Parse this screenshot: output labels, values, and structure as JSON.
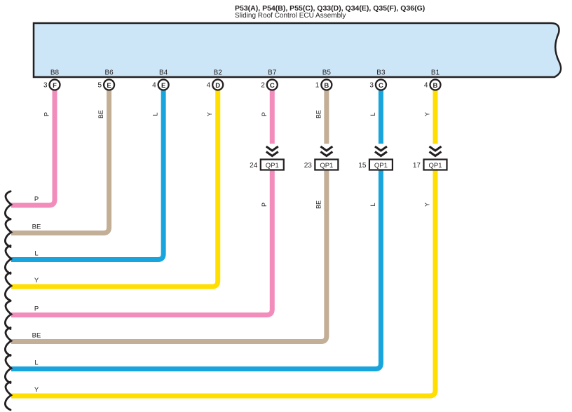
{
  "title": {
    "line1": "P53(A), P54(B), P55(C), Q33(D), Q34(E), Q35(F), Q36(G)",
    "line2": "Sliding Roof Control ECU Assembly"
  },
  "ecu_box": {
    "fill": "#CDE6F7",
    "stroke": "#231F20"
  },
  "wire_colors": {
    "P": "#F18CBB",
    "BE": "#C3AE96",
    "L": "#18A5DE",
    "Y": "#FFDE00"
  },
  "splice_label": "QP1",
  "pins": [
    {
      "terminal": "B8",
      "pin": "3",
      "code": "F",
      "wire": "P",
      "splice": null
    },
    {
      "terminal": "B6",
      "pin": "5",
      "code": "E",
      "wire": "BE",
      "splice": null
    },
    {
      "terminal": "B4",
      "pin": "4",
      "code": "E",
      "wire": "L",
      "splice": null
    },
    {
      "terminal": "B2",
      "pin": "4",
      "code": "D",
      "wire": "Y",
      "splice": null
    },
    {
      "terminal": "B7",
      "pin": "2",
      "code": "C",
      "wire": "P",
      "splice": "24"
    },
    {
      "terminal": "B5",
      "pin": "1",
      "code": "B",
      "wire": "BE",
      "splice": "23"
    },
    {
      "terminal": "B3",
      "pin": "3",
      "code": "C",
      "wire": "L",
      "splice": "15"
    },
    {
      "terminal": "B1",
      "pin": "4",
      "code": "B",
      "wire": "Y",
      "splice": "17"
    }
  ]
}
